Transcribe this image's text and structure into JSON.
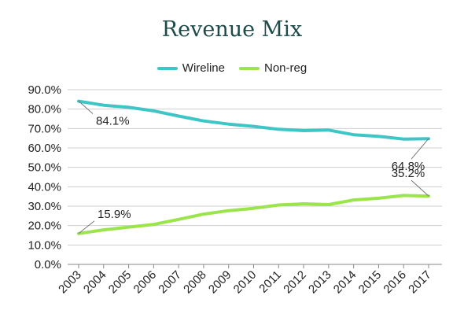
{
  "chart_data": {
    "type": "line",
    "title": "Revenue Mix",
    "xlabel": "",
    "ylabel": "",
    "ylim": [
      0,
      90
    ],
    "yticks": [
      "0.0%",
      "10.0%",
      "20.0%",
      "30.0%",
      "40.0%",
      "50.0%",
      "60.0%",
      "70.0%",
      "80.0%",
      "90.0%"
    ],
    "categories": [
      "2003",
      "2004",
      "2005",
      "2006",
      "2007",
      "2008",
      "2009",
      "2010",
      "2011",
      "2012",
      "2013",
      "2014",
      "2015",
      "2016",
      "2017"
    ],
    "series": [
      {
        "name": "Wireline",
        "color": "#3ec6c6",
        "values": [
          84.1,
          82.0,
          80.9,
          79.1,
          76.4,
          73.9,
          72.3,
          71.1,
          69.6,
          68.9,
          69.2,
          66.8,
          66.0,
          64.6,
          64.8
        ]
      },
      {
        "name": "Non-reg",
        "color": "#99e54a",
        "values": [
          15.9,
          17.8,
          19.2,
          20.6,
          23.2,
          25.9,
          27.7,
          28.9,
          30.6,
          31.2,
          30.8,
          33.2,
          34.1,
          35.5,
          35.2
        ]
      }
    ],
    "data_labels": [
      {
        "series": 0,
        "index": 0,
        "text": "84.1%"
      },
      {
        "series": 0,
        "index": 14,
        "text": "64.8%"
      },
      {
        "series": 1,
        "index": 0,
        "text": "15.9%"
      },
      {
        "series": 1,
        "index": 14,
        "text": "35.2%"
      }
    ],
    "grid": true,
    "legend_position": "top"
  }
}
